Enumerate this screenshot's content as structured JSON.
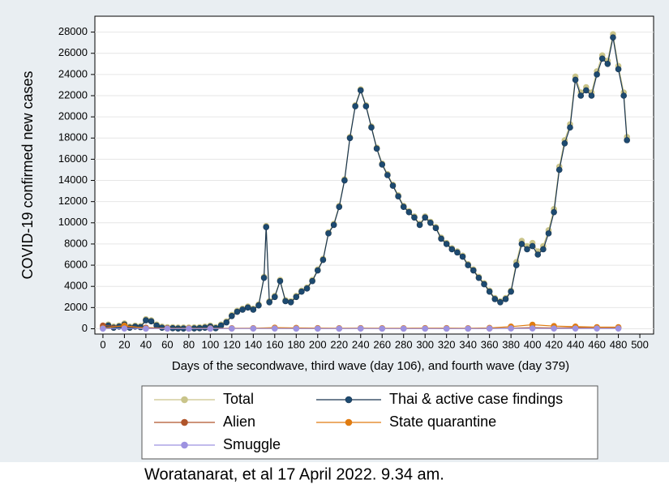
{
  "chart_data": {
    "type": "line",
    "xlabel": "Days of the secondwave, third wave (day 106), and fourth wave (day 379)",
    "ylabel": "COVID-19 confirmed new cases",
    "caption": "Woratanarat, et al 17 April 2022. 9.34 am.",
    "xlim": [
      -7.5,
      512.8
    ],
    "ylim": [
      -500,
      29500
    ],
    "xticks": [
      0,
      20,
      40,
      60,
      80,
      100,
      120,
      140,
      160,
      180,
      200,
      220,
      240,
      260,
      280,
      300,
      320,
      340,
      360,
      380,
      400,
      420,
      440,
      460,
      480,
      500
    ],
    "yticks": [
      0,
      2000,
      4000,
      6000,
      8000,
      10000,
      12000,
      14000,
      16000,
      18000,
      20000,
      22000,
      24000,
      26000,
      28000
    ],
    "grid": true,
    "series": [
      {
        "name": "Total",
        "color": "#c9c48a",
        "x": [
          0,
          5,
          10,
          15,
          20,
          25,
          30,
          35,
          40,
          45,
          50,
          55,
          60,
          65,
          70,
          75,
          80,
          85,
          90,
          95,
          100,
          105,
          110,
          115,
          120,
          125,
          130,
          135,
          140,
          145,
          150,
          152,
          155,
          160,
          165,
          170,
          175,
          180,
          185,
          190,
          195,
          200,
          205,
          210,
          215,
          220,
          225,
          230,
          235,
          240,
          245,
          250,
          255,
          260,
          265,
          270,
          275,
          280,
          285,
          290,
          295,
          300,
          305,
          310,
          315,
          320,
          325,
          330,
          335,
          340,
          345,
          350,
          355,
          360,
          365,
          370,
          375,
          380,
          385,
          390,
          395,
          400,
          405,
          410,
          415,
          420,
          425,
          430,
          435,
          440,
          445,
          450,
          455,
          460,
          465,
          470,
          475,
          480,
          485,
          488
        ],
        "values": [
          200,
          400,
          200,
          300,
          500,
          200,
          300,
          250,
          900,
          800,
          400,
          200,
          150,
          150,
          120,
          120,
          120,
          130,
          150,
          200,
          300,
          150,
          400,
          700,
          1300,
          1700,
          1900,
          2100,
          1900,
          2300,
          4900,
          9700,
          2600,
          3100,
          4600,
          2700,
          2600,
          3100,
          3600,
          3900,
          4600,
          5600,
          6600,
          9100,
          9900,
          11600,
          14100,
          18100,
          21100,
          22600,
          21100,
          19100,
          17100,
          15600,
          14600,
          13600,
          12600,
          11600,
          11100,
          10600,
          9900,
          10600,
          10100,
          9600,
          8600,
          8100,
          7600,
          7300,
          6900,
          6100,
          5600,
          4900,
          4300,
          3600,
          2900,
          2600,
          2900,
          3600,
          6300,
          8300,
          7800,
          8100,
          7300,
          7800,
          9300,
          11300,
          15300,
          17800,
          19300,
          23800,
          22300,
          22800,
          22300,
          24300,
          25800,
          25300,
          27800,
          24800,
          22300,
          18100
        ]
      },
      {
        "name": "Thai & active case findings",
        "color": "#1d4a70",
        "x": [
          0,
          5,
          10,
          15,
          20,
          25,
          30,
          35,
          40,
          45,
          50,
          55,
          60,
          65,
          70,
          75,
          80,
          85,
          90,
          95,
          100,
          105,
          110,
          115,
          120,
          125,
          130,
          135,
          140,
          145,
          150,
          152,
          155,
          160,
          165,
          170,
          175,
          180,
          185,
          190,
          195,
          200,
          205,
          210,
          215,
          220,
          225,
          230,
          235,
          240,
          245,
          250,
          255,
          260,
          265,
          270,
          275,
          280,
          285,
          290,
          295,
          300,
          305,
          310,
          315,
          320,
          325,
          330,
          335,
          340,
          345,
          350,
          355,
          360,
          365,
          370,
          375,
          380,
          385,
          390,
          395,
          400,
          405,
          410,
          415,
          420,
          425,
          430,
          435,
          440,
          445,
          450,
          455,
          460,
          465,
          470,
          475,
          480,
          485,
          488
        ],
        "values": [
          100,
          300,
          100,
          200,
          400,
          100,
          200,
          150,
          800,
          700,
          300,
          100,
          50,
          50,
          20,
          20,
          20,
          30,
          50,
          100,
          200,
          50,
          300,
          600,
          1200,
          1600,
          1800,
          2000,
          1800,
          2200,
          4800,
          9600,
          2500,
          3000,
          4500,
          2600,
          2500,
          3000,
          3500,
          3800,
          4500,
          5500,
          6500,
          9000,
          9800,
          11500,
          14000,
          18000,
          21000,
          22500,
          21000,
          19000,
          17000,
          15500,
          14500,
          13500,
          12500,
          11500,
          11000,
          10500,
          9800,
          10500,
          10000,
          9500,
          8500,
          8000,
          7500,
          7200,
          6800,
          6000,
          5500,
          4800,
          4200,
          3500,
          2800,
          2500,
          2800,
          3500,
          6000,
          8000,
          7500,
          7800,
          7000,
          7500,
          9000,
          11000,
          15000,
          17500,
          19000,
          23500,
          22000,
          22500,
          22000,
          24000,
          25500,
          25000,
          27500,
          24500,
          22000,
          17800
        ]
      },
      {
        "name": "Alien",
        "color": "#b0552b",
        "x": [
          0,
          20,
          40,
          60,
          80,
          100,
          120,
          140,
          160,
          180,
          200,
          220,
          240,
          260,
          280,
          300,
          320,
          340,
          360,
          380,
          400,
          420,
          440,
          460,
          480
        ],
        "values": [
          300,
          200,
          100,
          50,
          30,
          20,
          30,
          40,
          60,
          50,
          40,
          30,
          40,
          30,
          20,
          30,
          20,
          20,
          30,
          60,
          100,
          80,
          100,
          120,
          100
        ]
      },
      {
        "name": "State quarantine",
        "color": "#e07b10",
        "x": [
          0,
          20,
          40,
          60,
          80,
          100,
          120,
          140,
          160,
          180,
          200,
          220,
          240,
          260,
          280,
          300,
          320,
          340,
          360,
          380,
          400,
          420,
          440,
          460,
          480
        ],
        "values": [
          50,
          300,
          40,
          30,
          40,
          40,
          50,
          50,
          100,
          80,
          60,
          50,
          60,
          50,
          50,
          60,
          60,
          50,
          80,
          200,
          380,
          250,
          200,
          150,
          150
        ]
      },
      {
        "name": "Smuggle",
        "color": "#9d92e0",
        "x": [
          0,
          20,
          40,
          60,
          80,
          100,
          120,
          140,
          160,
          180,
          200,
          220,
          240,
          260,
          280,
          300,
          320,
          340,
          360,
          380,
          400,
          420,
          440,
          460,
          480
        ],
        "values": [
          10,
          20,
          10,
          10,
          10,
          10,
          20,
          20,
          20,
          10,
          10,
          10,
          20,
          10,
          10,
          10,
          10,
          10,
          20,
          30,
          30,
          20,
          20,
          20,
          20
        ]
      }
    ]
  }
}
